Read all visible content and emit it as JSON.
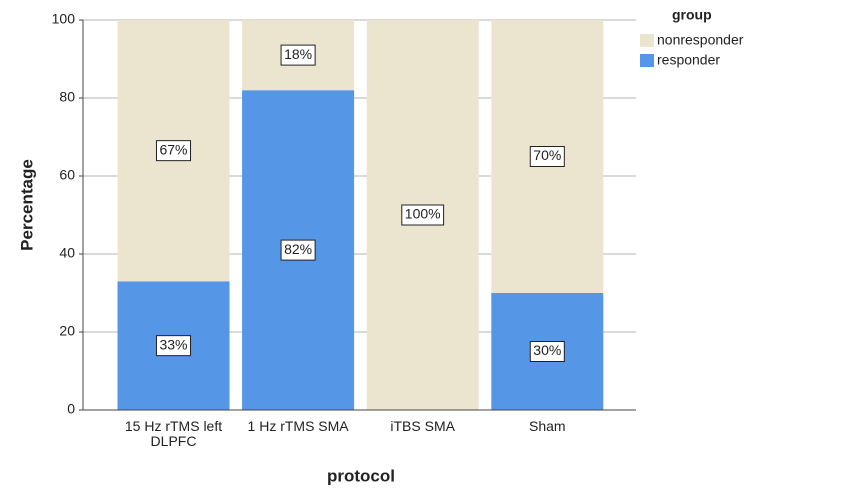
{
  "chart_data": {
    "type": "stacked_bar",
    "x_label": "protocol",
    "y_label": "Percentage",
    "categories": [
      "15 Hz rTMS left DLPFC",
      "1 Hz rTMS SMA",
      "iTBS SMA",
      "Sham"
    ],
    "legend_title": "group",
    "legend_position": "top-right",
    "series": [
      {
        "name": "nonresponder",
        "color": "#ebe4cf",
        "values": [
          67,
          18,
          100,
          70
        ],
        "value_labels": [
          "67%",
          "18%",
          "100%",
          "70%"
        ]
      },
      {
        "name": "responder",
        "color": "#5596e6",
        "values": [
          33,
          82,
          0,
          30
        ],
        "value_labels": [
          "33%",
          "82%",
          null,
          "30%"
        ]
      }
    ],
    "ylim": [
      0,
      100
    ],
    "yticks": [
      0,
      20,
      40,
      60,
      80,
      100
    ],
    "grid": true
  }
}
